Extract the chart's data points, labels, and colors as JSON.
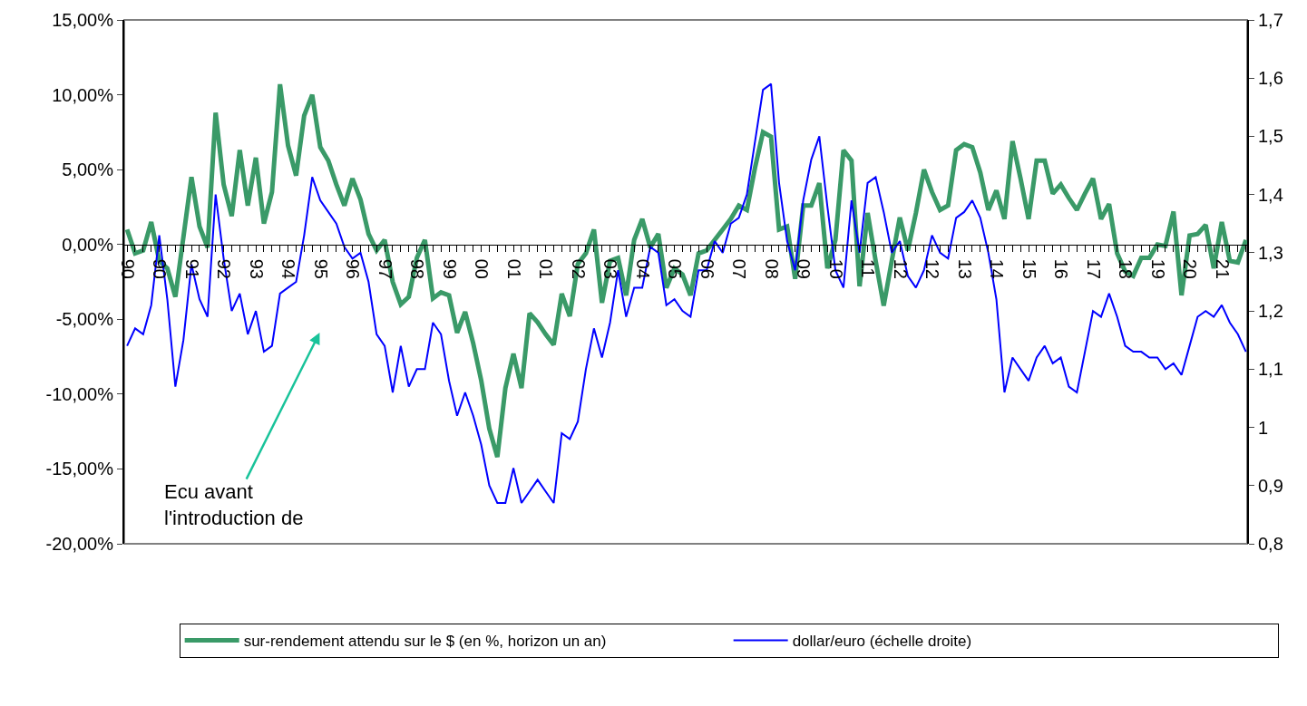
{
  "chart_data": {
    "type": "line",
    "categories": [
      "90",
      null,
      null,
      null,
      "90",
      null,
      null,
      null,
      "91",
      null,
      null,
      null,
      "92",
      null,
      null,
      null,
      "93",
      null,
      null,
      null,
      "94",
      null,
      null,
      null,
      "95",
      null,
      null,
      null,
      "96",
      null,
      null,
      null,
      "97",
      null,
      null,
      null,
      "98",
      null,
      null,
      null,
      "99",
      null,
      null,
      null,
      "00",
      null,
      null,
      null,
      "01",
      null,
      null,
      null,
      "01",
      null,
      null,
      null,
      "02",
      null,
      null,
      null,
      "03",
      null,
      null,
      null,
      "04",
      null,
      null,
      null,
      "05",
      null,
      null,
      null,
      "06",
      null,
      null,
      null,
      "07",
      null,
      null,
      null,
      "08",
      null,
      null,
      null,
      "09",
      null,
      null,
      null,
      "10",
      null,
      null,
      null,
      "11",
      null,
      null,
      null,
      "12",
      null,
      null,
      null,
      "12",
      null,
      null,
      null,
      "13",
      null,
      null,
      null,
      "14",
      null,
      null,
      null,
      "15",
      null,
      null,
      null,
      "16",
      null,
      null,
      null,
      "17",
      null,
      null,
      null,
      "18",
      null,
      null,
      null,
      "19",
      null,
      null,
      null,
      "20",
      null,
      null,
      null,
      "21",
      null,
      null,
      null
    ],
    "series": [
      {
        "name": "sur-rendement attendu sur le $ (en %, horizon un an)",
        "color": "#3a9a68",
        "values": [
          1.0,
          -0.6,
          -0.4,
          1.5,
          -1.1,
          -1.6,
          -3.5,
          0.5,
          4.5,
          1.2,
          -0.2,
          8.8,
          4.0,
          1.9,
          6.3,
          2.6,
          5.8,
          1.4,
          3.5,
          10.7,
          6.6,
          4.6,
          8.6,
          10.0,
          6.5,
          5.6,
          4.0,
          2.6,
          4.4,
          3.0,
          0.7,
          -0.4,
          0.3,
          -2.5,
          -4.0,
          -3.5,
          -0.9,
          0.3,
          -3.6,
          -3.2,
          -3.4,
          -5.9,
          -4.5,
          -6.6,
          -9.1,
          -12.3,
          -14.2,
          -9.6,
          -7.3,
          -9.6,
          -4.6,
          -5.2,
          -6.0,
          -6.7,
          -3.3,
          -4.8,
          -1.3,
          -0.6,
          1.0,
          -3.9,
          -1.1,
          -0.9,
          -3.4,
          0.3,
          1.7,
          -0.2,
          0.7,
          -2.9,
          -1.6,
          -2.0,
          -3.4,
          -0.6,
          -0.4,
          0.3,
          1.0,
          1.7,
          2.6,
          2.3,
          5.1,
          7.5,
          7.2,
          1.0,
          1.2,
          -2.3,
          2.6,
          2.6,
          4.1,
          -1.6,
          0.3,
          6.3,
          5.6,
          -2.8,
          2.1,
          -1.1,
          -4.1,
          -1.1,
          1.8,
          -0.4,
          2.1,
          5.0,
          3.5,
          2.3,
          2.6,
          6.3,
          6.7,
          6.5,
          4.8,
          2.3,
          3.6,
          1.7,
          6.9,
          4.4,
          1.7,
          5.6,
          5.6,
          3.4,
          4.0,
          3.1,
          2.3,
          3.4,
          4.4,
          1.7,
          2.7,
          -0.6,
          -1.8,
          -2.1,
          -0.9,
          -0.9,
          0.0,
          -0.1,
          2.2,
          -3.4,
          0.6,
          0.7,
          1.3,
          -1.6,
          1.5,
          -1.1,
          -1.2,
          0.3
        ]
      },
      {
        "name": "dollar/euro (échelle droite)",
        "color": "#0000ff",
        "axis": "y2",
        "values": [
          1.14,
          1.17,
          1.16,
          1.21,
          1.33,
          1.22,
          1.07,
          1.15,
          1.28,
          1.22,
          1.19,
          1.4,
          1.29,
          1.2,
          1.23,
          1.16,
          1.2,
          1.13,
          1.14,
          1.23,
          1.24,
          1.25,
          1.33,
          1.43,
          1.39,
          1.37,
          1.35,
          1.31,
          1.29,
          1.3,
          1.25,
          1.16,
          1.14,
          1.06,
          1.14,
          1.07,
          1.1,
          1.1,
          1.18,
          1.16,
          1.08,
          1.02,
          1.06,
          1.02,
          0.97,
          0.9,
          0.87,
          0.87,
          0.93,
          0.87,
          0.89,
          0.91,
          0.89,
          0.87,
          0.99,
          0.98,
          1.01,
          1.1,
          1.17,
          1.12,
          1.18,
          1.27,
          1.19,
          1.24,
          1.24,
          1.31,
          1.3,
          1.21,
          1.22,
          1.2,
          1.19,
          1.27,
          1.27,
          1.32,
          1.3,
          1.35,
          1.36,
          1.4,
          1.49,
          1.58,
          1.59,
          1.42,
          1.32,
          1.27,
          1.39,
          1.46,
          1.5,
          1.38,
          1.27,
          1.24,
          1.39,
          1.3,
          1.42,
          1.43,
          1.37,
          1.3,
          1.32,
          1.26,
          1.24,
          1.27,
          1.33,
          1.3,
          1.29,
          1.36,
          1.37,
          1.39,
          1.36,
          1.3,
          1.22,
          1.06,
          1.12,
          1.1,
          1.08,
          1.12,
          1.14,
          1.11,
          1.12,
          1.07,
          1.06,
          1.13,
          1.2,
          1.19,
          1.23,
          1.19,
          1.14,
          1.13,
          1.13,
          1.12,
          1.12,
          1.1,
          1.11,
          1.09,
          1.14,
          1.19,
          1.2,
          1.19,
          1.21,
          1.18,
          1.16,
          1.13
        ]
      }
    ],
    "ylim": [
      -20,
      15
    ],
    "yticks": [
      {
        "value": -20,
        "label": "-20,00%"
      },
      {
        "value": -15,
        "label": "-15,00%"
      },
      {
        "value": -10,
        "label": "-10,00%"
      },
      {
        "value": -5,
        "label": "-5,00%"
      },
      {
        "value": 0,
        "label": "0,00%"
      },
      {
        "value": 5,
        "label": "5,00%"
      },
      {
        "value": 10,
        "label": "10,00%"
      },
      {
        "value": 15,
        "label": "15,00%"
      }
    ],
    "y2lim": [
      0.8,
      1.7
    ],
    "y2ticks": [
      {
        "value": 0.8,
        "label": "0,8"
      },
      {
        "value": 0.9,
        "label": "0,9"
      },
      1,
      {
        "value": 1.1,
        "label": "1,1"
      },
      {
        "value": 1.2,
        "label": "1,2"
      },
      {
        "value": 1.3,
        "label": "1,3"
      },
      {
        "value": 1.4,
        "label": "1,4"
      },
      {
        "value": 1.5,
        "label": "1,5"
      },
      {
        "value": 1.6,
        "label": "1,6"
      },
      {
        "value": 1.7,
        "label": "1,7"
      }
    ],
    "annotations": [
      "Ecu avant\nl'introduction de"
    ],
    "legend": "bottom",
    "grid": false
  }
}
